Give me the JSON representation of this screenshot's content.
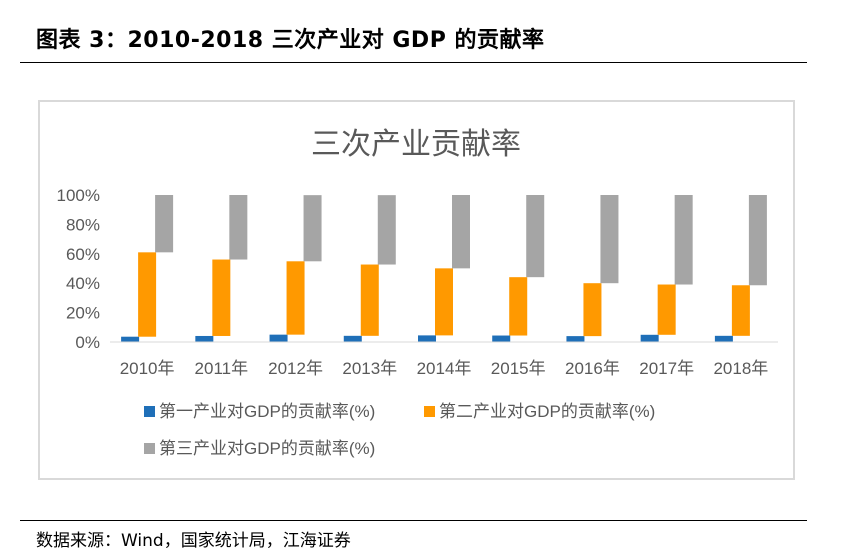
{
  "figure": {
    "title": "图表 3：2010-2018 三次产业对 GDP 的贡献率",
    "source": "数据来源：Wind，国家统计局，江海证券"
  },
  "chart_data": {
    "type": "bar",
    "title": "三次产业贡献率",
    "categories": [
      "2010年",
      "2011年",
      "2012年",
      "2013年",
      "2014年",
      "2015年",
      "2016年",
      "2017年",
      "2018年"
    ],
    "series": [
      {
        "name": "第一产业对GDP的贡献率(%)",
        "color": "#1f6fb8",
        "values": [
          3.6,
          4.1,
          5.0,
          4.2,
          4.5,
          4.4,
          4.0,
          4.9,
          4.2
        ]
      },
      {
        "name": "第二产业对GDP的贡献率(%)",
        "color": "#ff9900",
        "values": [
          57.4,
          52.0,
          49.9,
          48.5,
          45.6,
          39.7,
          36.0,
          34.2,
          34.4
        ]
      },
      {
        "name": "第三产业对GDP的贡献率(%)",
        "color": "#a5a5a5",
        "values": [
          39.0,
          43.9,
          45.0,
          47.2,
          49.9,
          55.9,
          60.0,
          60.9,
          61.4
        ]
      }
    ],
    "stacked": true,
    "ylim": [
      0,
      100
    ],
    "yticks": [
      "0%",
      "20%",
      "40%",
      "60%",
      "80%",
      "100%"
    ],
    "xlabel": "",
    "ylabel": "",
    "legend": "bottom",
    "grid": false
  }
}
